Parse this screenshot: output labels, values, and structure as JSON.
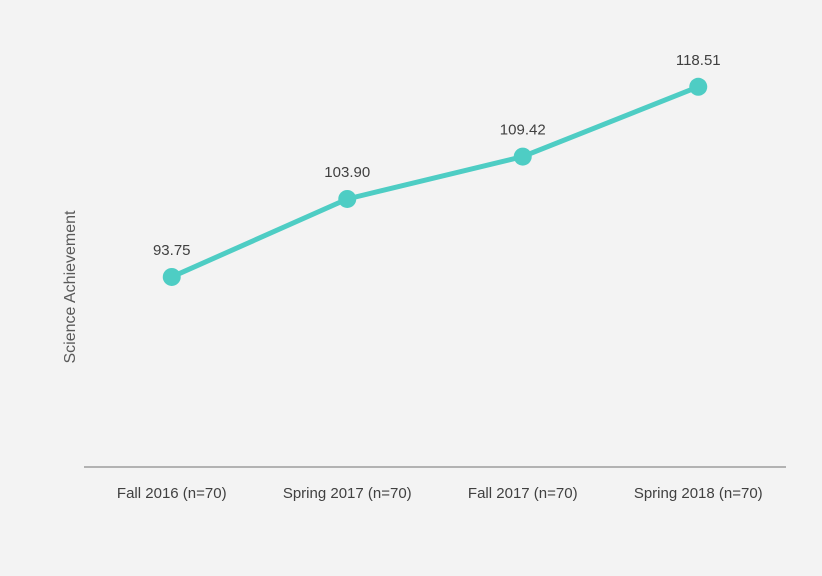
{
  "chart_data": {
    "type": "line",
    "title": "",
    "xlabel": "",
    "ylabel": "Science Achievement",
    "categories": [
      "Fall 2016 (n=70)",
      "Spring 2017 (n=70)",
      "Fall 2017 (n=70)",
      "Spring 2018 (n=70)"
    ],
    "series": [
      {
        "values": [
          93.75,
          103.9,
          109.42,
          118.51
        ],
        "labels": [
          "93.75",
          "103.90",
          "109.42",
          "118.51"
        ]
      }
    ],
    "ylim": [
      69,
      122
    ],
    "grid": false,
    "legend": "none",
    "colors": {
      "line": "#4ecdc4",
      "axis": "#8c8c8c",
      "background": "#f3f3f3"
    }
  }
}
